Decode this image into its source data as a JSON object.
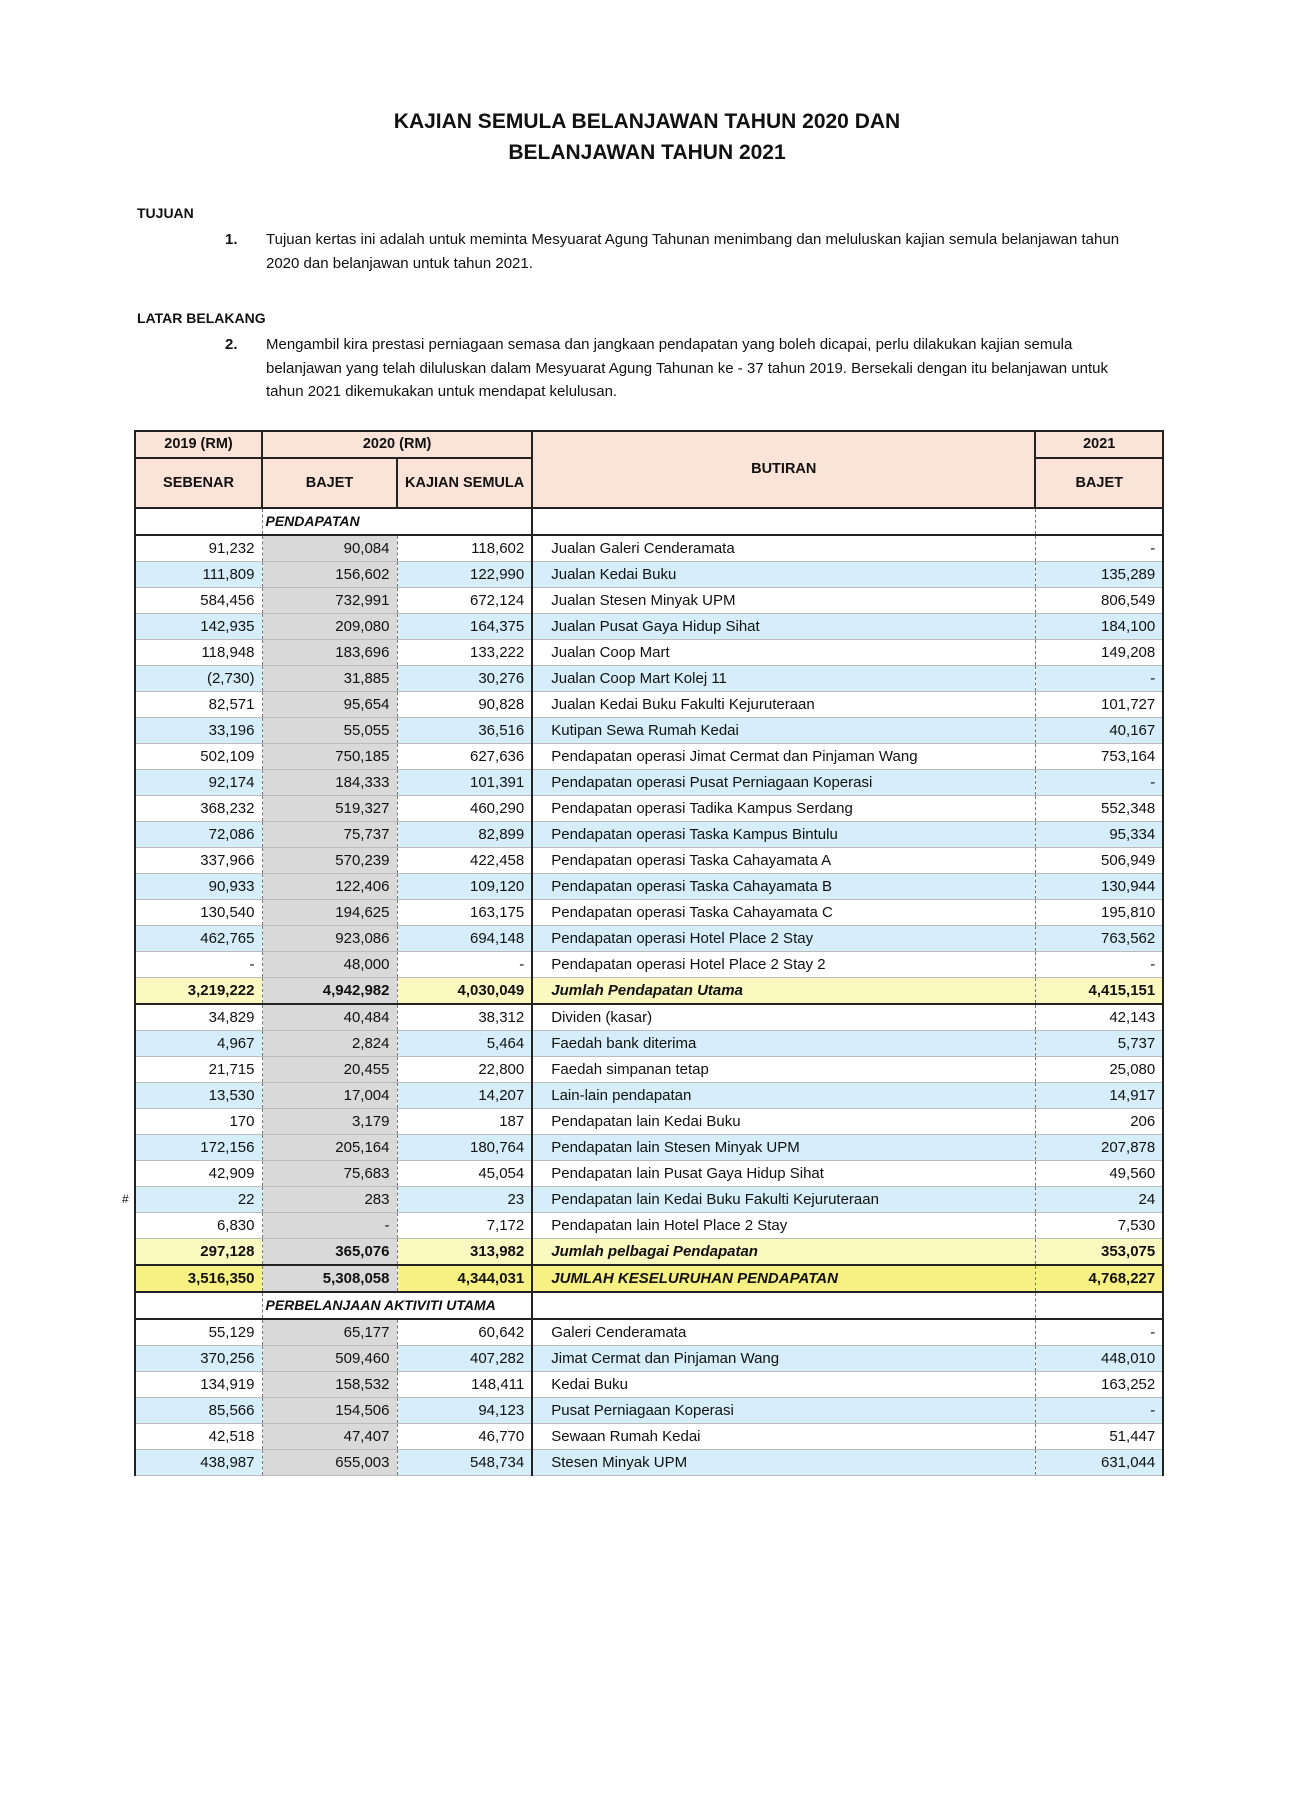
{
  "title": [
    "KAJIAN SEMULA BELANJAWAN TAHUN 2020 DAN",
    "BELANJAWAN TAHUN 2021"
  ],
  "sections": [
    {
      "heading": "TUJUAN",
      "number": "1.",
      "text": "Tujuan kertas ini adalah untuk meminta Mesyuarat Agung Tahunan menimbang dan meluluskan kajian semula belanjawan tahun 2020 dan belanjawan untuk tahun 2021."
    },
    {
      "heading": "LATAR BELAKANG",
      "number": "2.",
      "text": "Mengambil kira prestasi perniagaan semasa dan jangkaan pendapatan yang boleh dicapai, perlu dilakukan kajian semula belanjawan yang telah diluluskan dalam Mesyuarat Agung Tahunan ke - 37 tahun 2019. Bersekali dengan itu belanjawan untuk tahun 2021 dikemukakan untuk mendapat kelulusan."
    }
  ],
  "table": {
    "headers": {
      "y2019": "2019 (RM)",
      "y2020": "2020 (RM)",
      "butiran": "BUTIRAN",
      "y2021": "2021",
      "sebenar": "SEBENAR",
      "bajet": "BAJET",
      "kajian": "KAJIAN SEMULA",
      "bajet2021": "BAJET"
    },
    "row_marker": "#",
    "rows": [
      {
        "type": "sec",
        "label": "PENDAPATAN"
      },
      {
        "type": "row",
        "v": [
          "91,232",
          "90,084",
          "118,602",
          "Jualan Galeri Cenderamata",
          "-"
        ]
      },
      {
        "type": "alt",
        "v": [
          "111,809",
          "156,602",
          "122,990",
          "Jualan Kedai Buku",
          "135,289"
        ]
      },
      {
        "type": "row",
        "v": [
          "584,456",
          "732,991",
          "672,124",
          "Jualan Stesen Minyak UPM",
          "806,549"
        ]
      },
      {
        "type": "alt",
        "v": [
          "142,935",
          "209,080",
          "164,375",
          "Jualan Pusat Gaya Hidup Sihat",
          "184,100"
        ]
      },
      {
        "type": "row",
        "v": [
          "118,948",
          "183,696",
          "133,222",
          "Jualan Coop Mart",
          "149,208"
        ]
      },
      {
        "type": "alt",
        "v": [
          "(2,730)",
          "31,885",
          "30,276",
          "Jualan Coop Mart Kolej 11",
          "-"
        ]
      },
      {
        "type": "row",
        "v": [
          "82,571",
          "95,654",
          "90,828",
          "Jualan Kedai Buku Fakulti Kejuruteraan",
          "101,727"
        ]
      },
      {
        "type": "alt",
        "v": [
          "33,196",
          "55,055",
          "36,516",
          "Kutipan Sewa Rumah Kedai",
          "40,167"
        ]
      },
      {
        "type": "row",
        "v": [
          "502,109",
          "750,185",
          "627,636",
          "Pendapatan operasi  Jimat Cermat dan Pinjaman Wang",
          "753,164"
        ]
      },
      {
        "type": "alt",
        "v": [
          "92,174",
          "184,333",
          "101,391",
          "Pendapatan operasi Pusat Perniagaan Koperasi",
          "-"
        ]
      },
      {
        "type": "row",
        "v": [
          "368,232",
          "519,327",
          "460,290",
          "Pendapatan operasi Tadika Kampus Serdang",
          "552,348"
        ]
      },
      {
        "type": "alt",
        "v": [
          "72,086",
          "75,737",
          "82,899",
          "Pendapatan operasi Taska Kampus Bintulu",
          "95,334"
        ]
      },
      {
        "type": "row",
        "v": [
          "337,966",
          "570,239",
          "422,458",
          "Pendapatan operasi Taska Cahayamata A",
          "506,949"
        ]
      },
      {
        "type": "alt",
        "v": [
          "90,933",
          "122,406",
          "109,120",
          "Pendapatan operasi Taska Cahayamata B",
          "130,944"
        ]
      },
      {
        "type": "row",
        "v": [
          "130,540",
          "194,625",
          "163,175",
          "Pendapatan operasi Taska Cahayamata C",
          "195,810"
        ]
      },
      {
        "type": "alt",
        "v": [
          "462,765",
          "923,086",
          "694,148",
          "Pendapatan operasi Hotel Place 2 Stay",
          "763,562"
        ]
      },
      {
        "type": "row",
        "v": [
          "-",
          "48,000",
          "-",
          "Pendapatan operasi Hotel Place 2 Stay 2",
          "-"
        ]
      },
      {
        "type": "sub",
        "v": [
          "3,219,222",
          "4,942,982",
          "4,030,049",
          "Jumlah Pendapatan Utama",
          "4,415,151"
        ]
      },
      {
        "type": "row",
        "v": [
          "34,829",
          "40,484",
          "38,312",
          "Dividen (kasar)",
          "42,143"
        ]
      },
      {
        "type": "alt",
        "v": [
          "4,967",
          "2,824",
          "5,464",
          "Faedah bank diterima",
          "5,737"
        ]
      },
      {
        "type": "row",
        "v": [
          "21,715",
          "20,455",
          "22,800",
          "Faedah simpanan tetap",
          "25,080"
        ]
      },
      {
        "type": "alt",
        "v": [
          "13,530",
          "17,004",
          "14,207",
          "Lain-lain pendapatan",
          "14,917"
        ]
      },
      {
        "type": "row",
        "v": [
          "170",
          "3,179",
          "187",
          "Pendapatan lain Kedai Buku",
          "206"
        ]
      },
      {
        "type": "alt",
        "v": [
          "172,156",
          "205,164",
          "180,764",
          "Pendapatan lain Stesen Minyak UPM",
          "207,878"
        ]
      },
      {
        "type": "row",
        "v": [
          "42,909",
          "75,683",
          "45,054",
          "Pendapatan lain Pusat Gaya Hidup Sihat",
          "49,560"
        ]
      },
      {
        "type": "alt",
        "v": [
          "22",
          "283",
          "23",
          "Pendapatan lain Kedai Buku Fakulti Kejuruteraan",
          "24"
        ]
      },
      {
        "type": "row",
        "v": [
          "6,830",
          "-",
          "7,172",
          "Pendapatan lain Hotel Place 2 Stay",
          "7,530"
        ]
      },
      {
        "type": "sub",
        "v": [
          "297,128",
          "365,076",
          "313,982",
          "Jumlah pelbagai Pendapatan",
          "353,075"
        ]
      },
      {
        "type": "tot",
        "v": [
          "3,516,350",
          "5,308,058",
          "4,344,031",
          "JUMLAH KESELURUHAN PENDAPATAN",
          "4,768,227"
        ]
      },
      {
        "type": "sec",
        "label": "PERBELANJAAN AKTIVITI UTAMA"
      },
      {
        "type": "row",
        "v": [
          "55,129",
          "65,177",
          "60,642",
          "Galeri Cenderamata",
          "-"
        ]
      },
      {
        "type": "alt",
        "v": [
          "370,256",
          "509,460",
          "407,282",
          "Jimat Cermat dan Pinjaman Wang",
          "448,010"
        ]
      },
      {
        "type": "row",
        "v": [
          "134,919",
          "158,532",
          "148,411",
          "Kedai Buku",
          "163,252"
        ]
      },
      {
        "type": "alt",
        "v": [
          "85,566",
          "154,506",
          "94,123",
          "Pusat Perniagaan Koperasi",
          "-"
        ]
      },
      {
        "type": "row",
        "v": [
          "42,518",
          "47,407",
          "46,770",
          "Sewaan Rumah Kedai",
          "51,447"
        ]
      },
      {
        "type": "alt",
        "v": [
          "438,987",
          "655,003",
          "548,734",
          "Stesen Minyak UPM",
          "631,044"
        ]
      }
    ]
  }
}
